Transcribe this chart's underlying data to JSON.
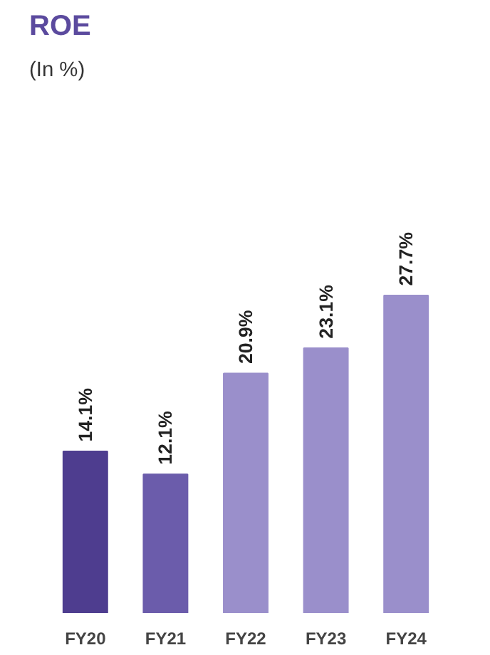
{
  "chart_data": {
    "type": "bar",
    "title": "ROE",
    "subtitle": "(In %)",
    "categories": [
      "FY20",
      "FY21",
      "FY22",
      "FY23",
      "FY24"
    ],
    "values": [
      14.1,
      12.1,
      20.9,
      23.1,
      27.7
    ],
    "value_labels": [
      "14.1%",
      "12.1%",
      "20.9%",
      "23.1%",
      "27.7%"
    ],
    "colors": [
      "#4e3d8f",
      "#6b5cab",
      "#9a8fcb",
      "#9a8fcb",
      "#9a8fcb"
    ],
    "grid": false
  }
}
